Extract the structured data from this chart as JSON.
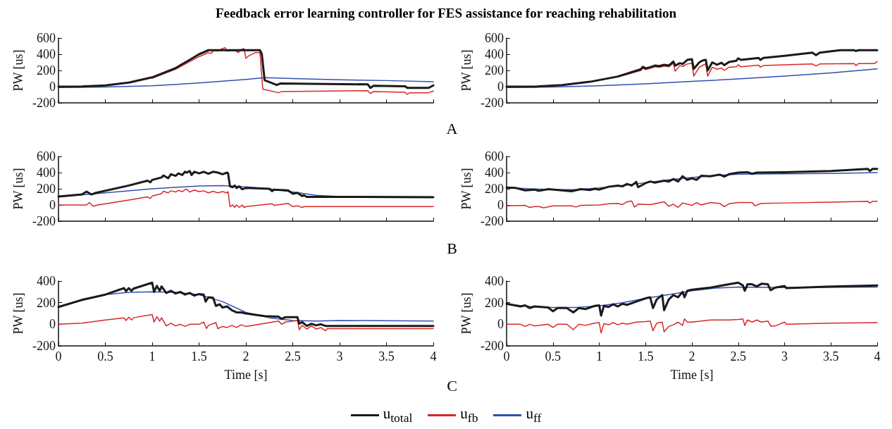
{
  "chart_data": [
    {
      "type": "line",
      "title": "Feedback error learning controller for FES assistance for reaching rehabilitation",
      "ylabel": "PW [us]",
      "xlim": [
        0,
        4
      ],
      "xticks": [
        0,
        0.5,
        1,
        1.5,
        2,
        2.5,
        3,
        3.5,
        4
      ],
      "ylim": [
        -200,
        600
      ],
      "yticks": [
        -200,
        0,
        200,
        400,
        600
      ],
      "tick_labels": "y",
      "grid": false,
      "series": [
        {
          "color": "#1a1a1a",
          "x": [
            0,
            0.25,
            0.5,
            0.75,
            1,
            1.25,
            1.4,
            1.5,
            1.6,
            2.15,
            2.17,
            2.2,
            2.33,
            2.37,
            3.3,
            3.33,
            3.36,
            3.7,
            3.72,
            3.95,
            4
          ],
          "values": [
            0,
            3,
            15,
            50,
            115,
            230,
            330,
            400,
            450,
            450,
            400,
            80,
            20,
            40,
            28,
            -15,
            10,
            5,
            -15,
            -15,
            15
          ]
        },
        {
          "color": "#d62828",
          "x": [
            1,
            1.25,
            1.5,
            1.6,
            1.63,
            1.66,
            1.7,
            1.75,
            1.78,
            1.8,
            1.88,
            1.92,
            1.95,
            1.98,
            2.0,
            2.03,
            2.1,
            2.15,
            2.18,
            2.35,
            2.38,
            3.3,
            3.33,
            3.36,
            3.7,
            3.72,
            3.75,
            3.95,
            4
          ],
          "values": [
            105,
            215,
            370,
            420,
            410,
            450,
            440,
            470,
            480,
            440,
            450,
            420,
            460,
            470,
            350,
            380,
            420,
            420,
            -30,
            -75,
            -60,
            -50,
            -85,
            -60,
            -70,
            -95,
            -75,
            -75,
            -55
          ]
        },
        {
          "color": "#3050b0",
          "x": [
            0,
            0.5,
            1,
            1.5,
            2,
            2.2,
            2.5,
            3,
            3.5,
            4
          ],
          "values": [
            -10,
            -5,
            10,
            45,
            90,
            110,
            100,
            85,
            75,
            60
          ]
        }
      ]
    },
    {
      "type": "line",
      "ylabel": "PW [us]",
      "xlim": [
        0,
        4
      ],
      "xticks": [
        0,
        0.5,
        1,
        1.5,
        2,
        2.5,
        3,
        3.5,
        4
      ],
      "ylim": [
        -200,
        600
      ],
      "yticks": [
        -200,
        0,
        200,
        400,
        600
      ],
      "tick_labels": "y",
      "grid": false,
      "annotations": [
        "A"
      ],
      "series": [
        {
          "color": "#1a1a1a",
          "x": [
            0,
            0.3,
            0.6,
            0.9,
            1.2,
            1.45,
            1.47,
            1.5,
            1.55,
            1.6,
            1.65,
            1.7,
            1.75,
            1.8,
            1.82,
            1.87,
            1.9,
            1.95,
            2.0,
            2.02,
            2.08,
            2.12,
            2.15,
            2.17,
            2.22,
            2.27,
            2.32,
            2.35,
            2.4,
            2.48,
            2.5,
            2.53,
            2.72,
            2.74,
            2.77,
            3.0,
            3.3,
            3.34,
            3.38,
            3.6,
            3.75,
            3.77,
            3.8,
            4
          ],
          "values": [
            0,
            0,
            20,
            60,
            125,
            215,
            245,
            225,
            240,
            260,
            255,
            270,
            260,
            310,
            260,
            290,
            280,
            330,
            340,
            220,
            300,
            325,
            330,
            200,
            300,
            270,
            295,
            265,
            305,
            320,
            350,
            330,
            355,
            330,
            355,
            380,
            420,
            390,
            420,
            450,
            450,
            440,
            450,
            450
          ]
        },
        {
          "color": "#d62828",
          "x": [
            1.2,
            1.45,
            1.47,
            1.5,
            1.55,
            1.6,
            1.65,
            1.7,
            1.75,
            1.8,
            1.82,
            1.87,
            1.9,
            1.95,
            2.0,
            2.02,
            2.08,
            2.12,
            2.15,
            2.17,
            2.22,
            2.27,
            2.32,
            2.35,
            2.4,
            2.48,
            2.5,
            2.53,
            2.72,
            2.74,
            2.77,
            3.0,
            3.3,
            3.34,
            3.38,
            3.75,
            3.77,
            3.8,
            3.97,
            4
          ],
          "values": [
            120,
            200,
            230,
            210,
            225,
            245,
            240,
            255,
            245,
            290,
            190,
            260,
            250,
            280,
            290,
            130,
            240,
            265,
            280,
            130,
            240,
            215,
            230,
            200,
            240,
            245,
            270,
            245,
            265,
            240,
            260,
            270,
            280,
            255,
            280,
            285,
            260,
            285,
            285,
            310
          ]
        },
        {
          "color": "#3050b0",
          "x": [
            0,
            0.5,
            1,
            1.5,
            2,
            2.5,
            3,
            3.5,
            4
          ],
          "values": [
            -10,
            -5,
            10,
            35,
            65,
            95,
            130,
            170,
            220
          ]
        }
      ]
    },
    {
      "type": "line",
      "ylabel": "PW [us]",
      "xlim": [
        0,
        4
      ],
      "xticks": [
        0,
        0.5,
        1,
        1.5,
        2,
        2.5,
        3,
        3.5,
        4
      ],
      "ylim": [
        -200,
        600
      ],
      "yticks": [
        -200,
        0,
        200,
        400,
        600
      ],
      "tick_labels": "y",
      "grid": false,
      "series": [
        {
          "color": "#1a1a1a",
          "x": [
            0,
            0.25,
            0.3,
            0.35,
            0.4,
            0.75,
            0.95,
            0.98,
            1.0,
            1.1,
            1.12,
            1.17,
            1.2,
            1.25,
            1.28,
            1.32,
            1.35,
            1.37,
            1.4,
            1.42,
            1.45,
            1.5,
            1.55,
            1.6,
            1.65,
            1.7,
            1.75,
            1.8,
            1.81,
            1.83,
            1.86,
            1.88,
            1.9,
            1.93,
            1.96,
            2.0,
            2.25,
            2.28,
            2.3,
            2.45,
            2.5,
            2.55,
            2.6,
            2.62,
            2.65,
            3,
            4
          ],
          "values": [
            105,
            130,
            165,
            130,
            150,
            240,
            300,
            280,
            310,
            340,
            365,
            330,
            380,
            360,
            390,
            370,
            410,
            400,
            420,
            370,
            410,
            390,
            410,
            385,
            410,
            400,
            380,
            400,
            390,
            230,
            220,
            240,
            210,
            230,
            195,
            210,
            200,
            170,
            190,
            180,
            140,
            150,
            110,
            120,
            100,
            100,
            95
          ]
        },
        {
          "color": "#d62828",
          "x": [
            0,
            0.3,
            0.33,
            0.37,
            0.42,
            0.75,
            0.95,
            0.98,
            1.0,
            1.1,
            1.12,
            1.17,
            1.2,
            1.25,
            1.28,
            1.32,
            1.35,
            1.37,
            1.4,
            1.45,
            1.5,
            1.55,
            1.6,
            1.65,
            1.7,
            1.75,
            1.8,
            1.81,
            1.83,
            1.86,
            1.88,
            1.9,
            1.93,
            1.96,
            1.98,
            2.0,
            2.28,
            2.3,
            2.45,
            2.5,
            2.55,
            2.6,
            2.62,
            3,
            4
          ],
          "values": [
            0,
            0,
            30,
            -15,
            0,
            60,
            100,
            80,
            110,
            140,
            170,
            150,
            175,
            160,
            180,
            165,
            190,
            195,
            160,
            185,
            165,
            175,
            150,
            170,
            150,
            165,
            150,
            165,
            -20,
            0,
            -30,
            0,
            -30,
            0,
            -30,
            -20,
            15,
            -5,
            20,
            -20,
            -10,
            -30,
            -20,
            -20,
            -20
          ]
        },
        {
          "color": "#3050b0",
          "x": [
            0,
            0.5,
            1,
            1.5,
            1.75,
            2,
            2.25,
            2.5,
            2.75,
            3,
            4
          ],
          "values": [
            100,
            150,
            200,
            235,
            240,
            225,
            200,
            160,
            120,
            105,
            100
          ]
        }
      ]
    },
    {
      "type": "line",
      "ylabel": "PW [us]",
      "xlim": [
        0,
        4
      ],
      "xticks": [
        0,
        0.5,
        1,
        1.5,
        2,
        2.5,
        3,
        3.5,
        4
      ],
      "ylim": [
        -200,
        600
      ],
      "yticks": [
        -200,
        0,
        200,
        400,
        600
      ],
      "tick_labels": "y",
      "grid": false,
      "annotations": [
        "B"
      ],
      "series": [
        {
          "color": "#1a1a1a",
          "x": [
            0,
            0.1,
            0.2,
            0.3,
            0.35,
            0.45,
            0.6,
            0.7,
            0.8,
            0.9,
            0.95,
            1.0,
            1.1,
            1.2,
            1.25,
            1.3,
            1.35,
            1.4,
            1.42,
            1.5,
            1.55,
            1.6,
            1.7,
            1.75,
            1.8,
            1.85,
            1.9,
            1.95,
            2.0,
            2.05,
            2.1,
            2.2,
            2.3,
            2.35,
            2.4,
            2.5,
            2.6,
            2.65,
            2.7,
            3.0,
            3.5,
            3.9,
            3.92,
            3.95,
            4
          ],
          "values": [
            215,
            210,
            180,
            190,
            175,
            195,
            180,
            170,
            195,
            185,
            200,
            190,
            225,
            240,
            230,
            260,
            240,
            285,
            220,
            270,
            290,
            275,
            300,
            290,
            320,
            290,
            355,
            310,
            330,
            310,
            360,
            355,
            375,
            350,
            380,
            400,
            405,
            385,
            400,
            405,
            420,
            445,
            420,
            445,
            445
          ]
        },
        {
          "color": "#d62828",
          "x": [
            0,
            0.2,
            0.25,
            0.3,
            0.35,
            0.4,
            0.5,
            0.7,
            0.75,
            0.8,
            1.0,
            1.1,
            1.2,
            1.25,
            1.3,
            1.35,
            1.38,
            1.42,
            1.55,
            1.7,
            1.75,
            1.8,
            1.85,
            1.9,
            2.0,
            2.05,
            2.1,
            2.2,
            2.3,
            2.35,
            2.4,
            2.5,
            2.65,
            2.68,
            2.75,
            3.0,
            3.5,
            3.9,
            3.92,
            3.95,
            4
          ],
          "values": [
            -10,
            -5,
            -30,
            -20,
            -20,
            -35,
            -10,
            -10,
            -25,
            -5,
            0,
            15,
            20,
            5,
            40,
            50,
            -25,
            10,
            5,
            40,
            -15,
            10,
            -30,
            25,
            -5,
            30,
            0,
            30,
            20,
            -20,
            15,
            30,
            30,
            -10,
            20,
            25,
            35,
            45,
            25,
            45,
            45
          ]
        },
        {
          "color": "#3050b0",
          "x": [
            0,
            0.25,
            0.5,
            0.75,
            1,
            1.25,
            1.5,
            1.75,
            2,
            2.25,
            2.5,
            3,
            3.5,
            4
          ],
          "values": [
            215,
            200,
            190,
            190,
            210,
            240,
            275,
            310,
            340,
            365,
            380,
            385,
            390,
            400
          ]
        }
      ]
    },
    {
      "type": "line",
      "xlabel": "Time [s]",
      "ylabel": "PW [us]",
      "xlim": [
        0,
        4
      ],
      "xticks": [
        0,
        0.5,
        1,
        1.5,
        2,
        2.5,
        3,
        3.5,
        4
      ],
      "ylim": [
        -200,
        400
      ],
      "yticks": [
        -200,
        0,
        200,
        400
      ],
      "grid": false,
      "series": [
        {
          "color": "#1a1a1a",
          "x": [
            0,
            0.25,
            0.5,
            0.7,
            0.72,
            0.75,
            0.78,
            0.8,
            1.0,
            1.02,
            1.05,
            1.08,
            1.1,
            1.15,
            1.2,
            1.25,
            1.3,
            1.35,
            1.4,
            1.45,
            1.5,
            1.55,
            1.57,
            1.6,
            1.65,
            1.68,
            1.72,
            1.75,
            1.8,
            1.85,
            1.9,
            1.95,
            2,
            2.2,
            2.35,
            2.38,
            2.42,
            2.55,
            2.57,
            2.6,
            2.65,
            2.7,
            2.75,
            2.8,
            2.85,
            4
          ],
          "values": [
            160,
            225,
            275,
            335,
            305,
            335,
            310,
            330,
            385,
            300,
            355,
            310,
            350,
            290,
            310,
            285,
            300,
            275,
            290,
            265,
            280,
            275,
            210,
            250,
            245,
            170,
            185,
            155,
            165,
            130,
            110,
            110,
            100,
            75,
            70,
            50,
            65,
            65,
            5,
            20,
            -15,
            5,
            -10,
            0,
            -15,
            -15
          ]
        },
        {
          "color": "#d62828",
          "x": [
            0,
            0.25,
            0.5,
            0.7,
            0.72,
            0.75,
            0.78,
            0.8,
            1.0,
            1.02,
            1.05,
            1.08,
            1.1,
            1.15,
            1.2,
            1.25,
            1.3,
            1.35,
            1.4,
            1.5,
            1.55,
            1.58,
            1.6,
            1.68,
            1.7,
            1.75,
            1.8,
            1.85,
            1.9,
            1.95,
            2.0,
            2.35,
            2.38,
            2.42,
            2.55,
            2.57,
            2.6,
            2.65,
            2.7,
            2.75,
            2.8,
            2.85,
            2.87,
            4
          ],
          "values": [
            0,
            10,
            40,
            60,
            35,
            65,
            40,
            60,
            90,
            20,
            70,
            30,
            60,
            -15,
            10,
            -15,
            0,
            -20,
            0,
            0,
            20,
            -40,
            -10,
            15,
            -40,
            -20,
            -30,
            -10,
            -30,
            -5,
            -20,
            30,
            0,
            20,
            35,
            -50,
            -10,
            -45,
            -15,
            -45,
            -30,
            -60,
            -40,
            -40
          ]
        },
        {
          "color": "#3050b0",
          "x": [
            0,
            0.25,
            0.5,
            0.75,
            1,
            1.25,
            1.5,
            1.75,
            2,
            2.25,
            2.5,
            2.75,
            3,
            4
          ],
          "values": [
            160,
            230,
            275,
            295,
            300,
            295,
            275,
            210,
            110,
            60,
            35,
            30,
            35,
            30
          ]
        }
      ]
    },
    {
      "type": "line",
      "xlabel": "Time [s]",
      "ylabel": "PW [us]",
      "xlim": [
        0,
        4
      ],
      "xticks": [
        0,
        0.5,
        1,
        1.5,
        2,
        2.5,
        3,
        3.5,
        4
      ],
      "ylim": [
        -200,
        400
      ],
      "yticks": [
        -200,
        0,
        200,
        400
      ],
      "grid": false,
      "annotations": [
        "C"
      ],
      "legend": "bottom",
      "series": [
        {
          "name": "u$_{total}$",
          "color": "#1a1a1a",
          "x": [
            0,
            0.15,
            0.2,
            0.25,
            0.3,
            0.45,
            0.5,
            0.55,
            0.65,
            0.72,
            0.78,
            0.85,
            0.95,
            1.0,
            1.02,
            1.05,
            1.1,
            1.15,
            1.2,
            1.25,
            1.3,
            1.4,
            1.5,
            1.55,
            1.58,
            1.62,
            1.68,
            1.7,
            1.75,
            1.8,
            1.85,
            1.9,
            1.92,
            1.95,
            2.0,
            2.2,
            2.4,
            2.5,
            2.55,
            2.57,
            2.6,
            2.65,
            2.7,
            2.75,
            2.82,
            2.85,
            2.9,
            3.0,
            3.02,
            3.5,
            4
          ],
          "values": [
            190,
            165,
            175,
            150,
            165,
            155,
            120,
            150,
            150,
            110,
            150,
            140,
            170,
            175,
            80,
            170,
            160,
            185,
            165,
            190,
            180,
            210,
            240,
            250,
            150,
            230,
            270,
            130,
            230,
            270,
            250,
            300,
            250,
            310,
            320,
            340,
            370,
            385,
            360,
            310,
            370,
            370,
            350,
            375,
            370,
            315,
            340,
            355,
            335,
            350,
            360
          ]
        },
        {
          "name": "u$_{fb}$",
          "color": "#d62828",
          "x": [
            0,
            0.15,
            0.2,
            0.25,
            0.3,
            0.45,
            0.5,
            0.55,
            0.65,
            0.72,
            0.78,
            0.85,
            0.95,
            1.0,
            1.02,
            1.05,
            1.1,
            1.15,
            1.2,
            1.25,
            1.3,
            1.4,
            1.5,
            1.55,
            1.58,
            1.62,
            1.68,
            1.7,
            1.75,
            1.8,
            1.85,
            1.9,
            1.92,
            1.95,
            2.0,
            2.2,
            2.4,
            2.5,
            2.55,
            2.57,
            2.6,
            2.65,
            2.7,
            2.75,
            2.82,
            2.85,
            2.9,
            3.0,
            3.02,
            3.5,
            4
          ],
          "values": [
            0,
            0,
            -20,
            0,
            -15,
            0,
            -30,
            0,
            0,
            -50,
            0,
            -10,
            10,
            15,
            -80,
            5,
            -5,
            15,
            -5,
            10,
            0,
            20,
            25,
            30,
            -60,
            10,
            20,
            -70,
            -20,
            -5,
            20,
            -10,
            50,
            20,
            20,
            40,
            40,
            45,
            50,
            -10,
            40,
            20,
            40,
            20,
            30,
            -15,
            -15,
            20,
            0,
            10,
            15
          ]
        },
        {
          "name": "u$_{ff}$",
          "color": "#3050b0",
          "x": [
            0,
            0.25,
            0.5,
            0.75,
            1,
            1.25,
            1.5,
            1.75,
            2,
            2.25,
            2.5,
            3,
            4
          ],
          "values": [
            185,
            165,
            155,
            155,
            170,
            200,
            240,
            275,
            310,
            335,
            345,
            340,
            345
          ]
        }
      ]
    }
  ]
}
